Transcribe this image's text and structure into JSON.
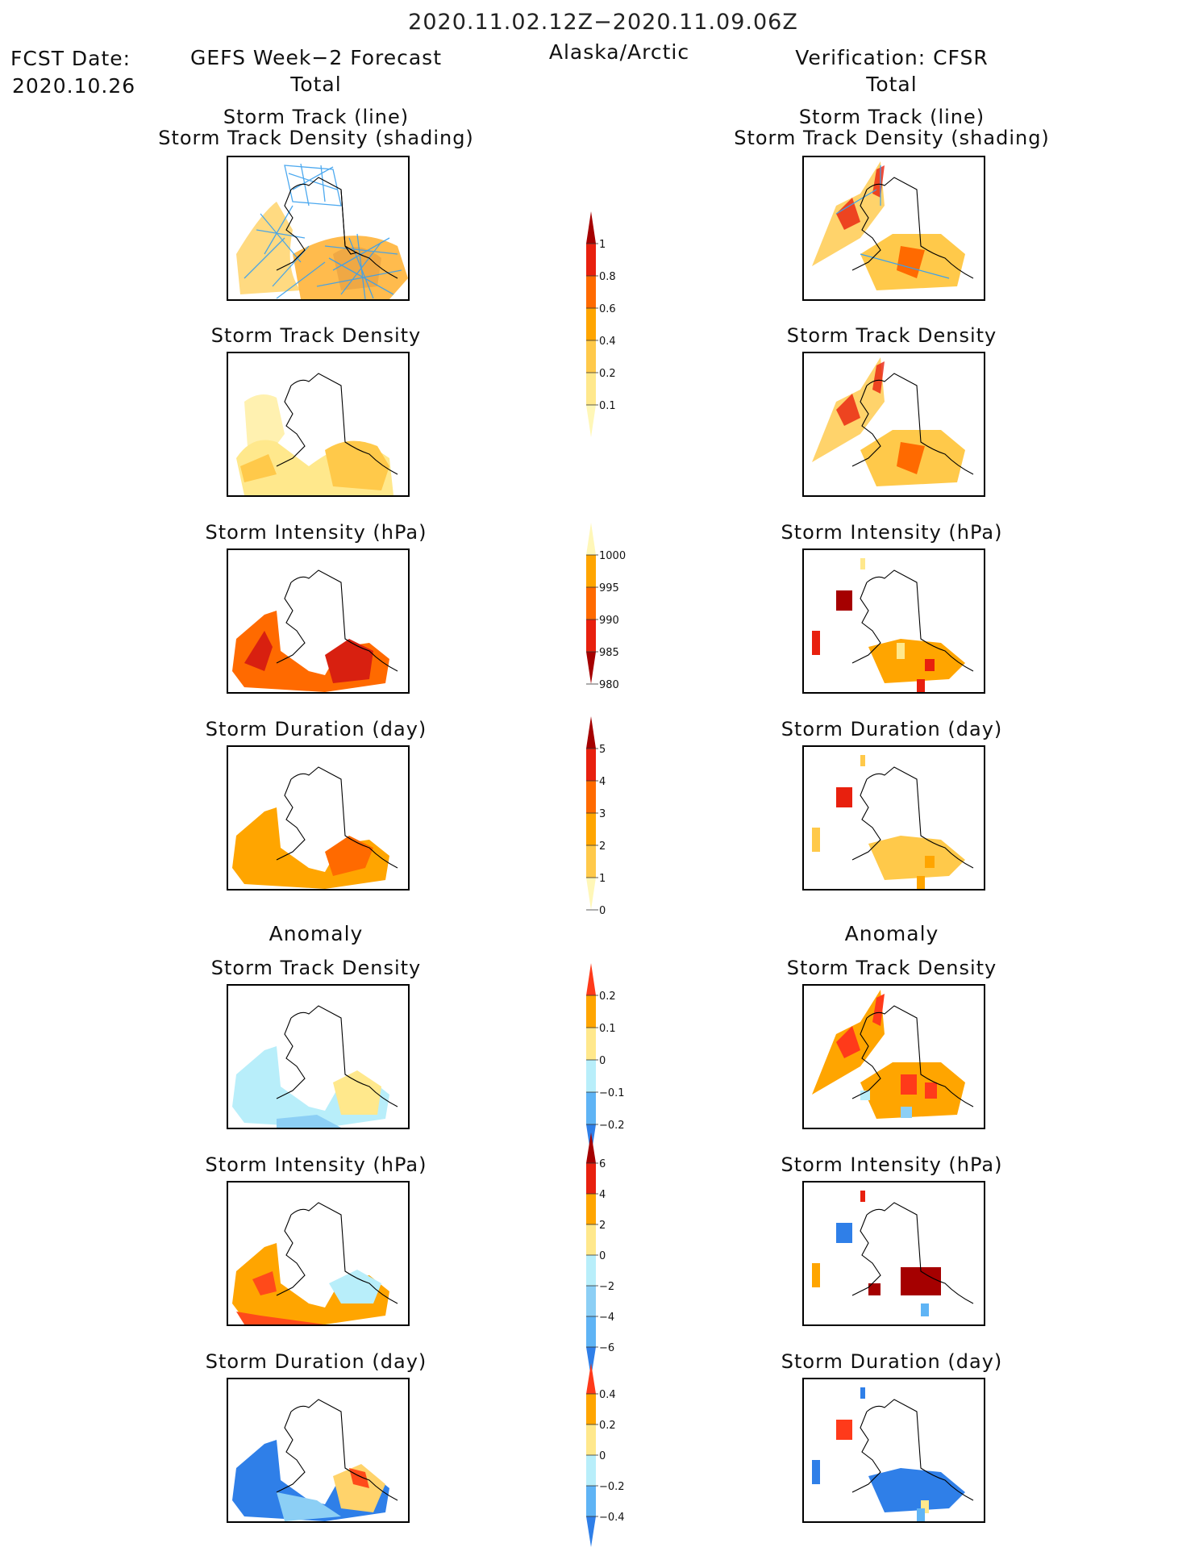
{
  "header": {
    "date_range": "2020.11.02.12Z−2020.11.09.06Z",
    "fcst_label": "FCST Date:",
    "fcst_date": "2020.10.26",
    "left_title": "GEFS Week−2 Forecast",
    "region": "Alaska/Arctic",
    "right_title": "Verification: CFSR",
    "left_subtitle": "Total",
    "right_subtitle": "Total",
    "left_anomaly": "Anomaly",
    "right_anomaly": "Anomaly"
  },
  "panels": {
    "track_line": "Storm Track (line)",
    "track_shading": "Storm Track Density (shading)",
    "density": "Storm Track Density",
    "intensity": "Storm Intensity (hPa)",
    "duration": "Storm Duration (day)"
  },
  "colorbars": {
    "density_total": {
      "ticks": [
        "1",
        "0.8",
        "0.6",
        "0.4",
        "0.2",
        "0.1"
      ],
      "colors": [
        "#a50000",
        "#e8200e",
        "#ff6a00",
        "#ffa500",
        "#ffc94a",
        "#ffe88c",
        "#fff7b8"
      ]
    },
    "intensity_total": {
      "ticks": [
        "1000",
        "995",
        "990",
        "985",
        "980"
      ],
      "colors": [
        "#fff7b8",
        "#ffa500",
        "#ff6a00",
        "#e8200e",
        "#a50000"
      ]
    },
    "duration_total": {
      "ticks": [
        "5",
        "4",
        "3",
        "2",
        "1",
        "0"
      ],
      "colors": [
        "#a50000",
        "#e8200e",
        "#ff6a00",
        "#ffa500",
        "#ffc94a",
        "#fff7b8"
      ]
    },
    "density_anom": {
      "ticks": [
        "0.2",
        "0.1",
        "0",
        "−0.1",
        "−0.2"
      ],
      "colors": [
        "#ff3a1a",
        "#ffa500",
        "#ffe88c",
        "#b8eefa",
        "#5fb4f5",
        "#2f7fe8"
      ]
    },
    "intensity_anom": {
      "ticks": [
        "6",
        "4",
        "2",
        "0",
        "−2",
        "−4",
        "−6"
      ],
      "colors": [
        "#a50000",
        "#e8200e",
        "#ffa500",
        "#ffe88c",
        "#b8eefa",
        "#8ccff5",
        "#5fb4f5",
        "#2f7fe8"
      ]
    },
    "duration_anom": {
      "ticks": [
        "0.4",
        "0.2",
        "0",
        "−0.2",
        "−0.4"
      ],
      "colors": [
        "#ff3a1a",
        "#ffa500",
        "#ffe88c",
        "#b8eefa",
        "#5fb4f5",
        "#2f7fe8"
      ]
    }
  }
}
